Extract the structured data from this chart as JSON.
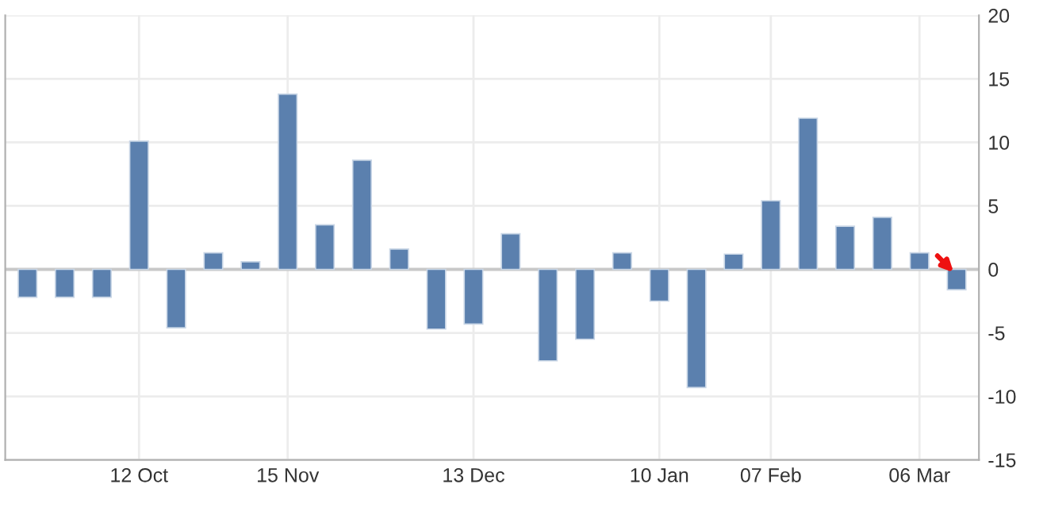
{
  "chart_data": {
    "type": "bar",
    "categories": [
      null,
      null,
      null,
      "12 Oct",
      null,
      null,
      null,
      "15 Nov",
      null,
      null,
      null,
      null,
      "13 Dec",
      null,
      null,
      null,
      null,
      "10 Jan",
      null,
      null,
      "07 Feb",
      null,
      null,
      null,
      "06 Mar",
      null
    ],
    "values": [
      -2.2,
      -2.2,
      -2.2,
      10.1,
      -4.6,
      1.3,
      0.6,
      13.8,
      3.5,
      8.6,
      1.6,
      -4.7,
      -4.3,
      2.8,
      -7.2,
      -5.5,
      1.3,
      -2.5,
      -9.3,
      1.2,
      5.4,
      11.9,
      3.4,
      4.1,
      1.3,
      -1.6
    ],
    "color": "#5b80ae",
    "ylim": [
      -15,
      20
    ],
    "yticks": [
      -15,
      -10,
      -5,
      0,
      5,
      10,
      15,
      20
    ],
    "grid": true,
    "legend": false
  }
}
